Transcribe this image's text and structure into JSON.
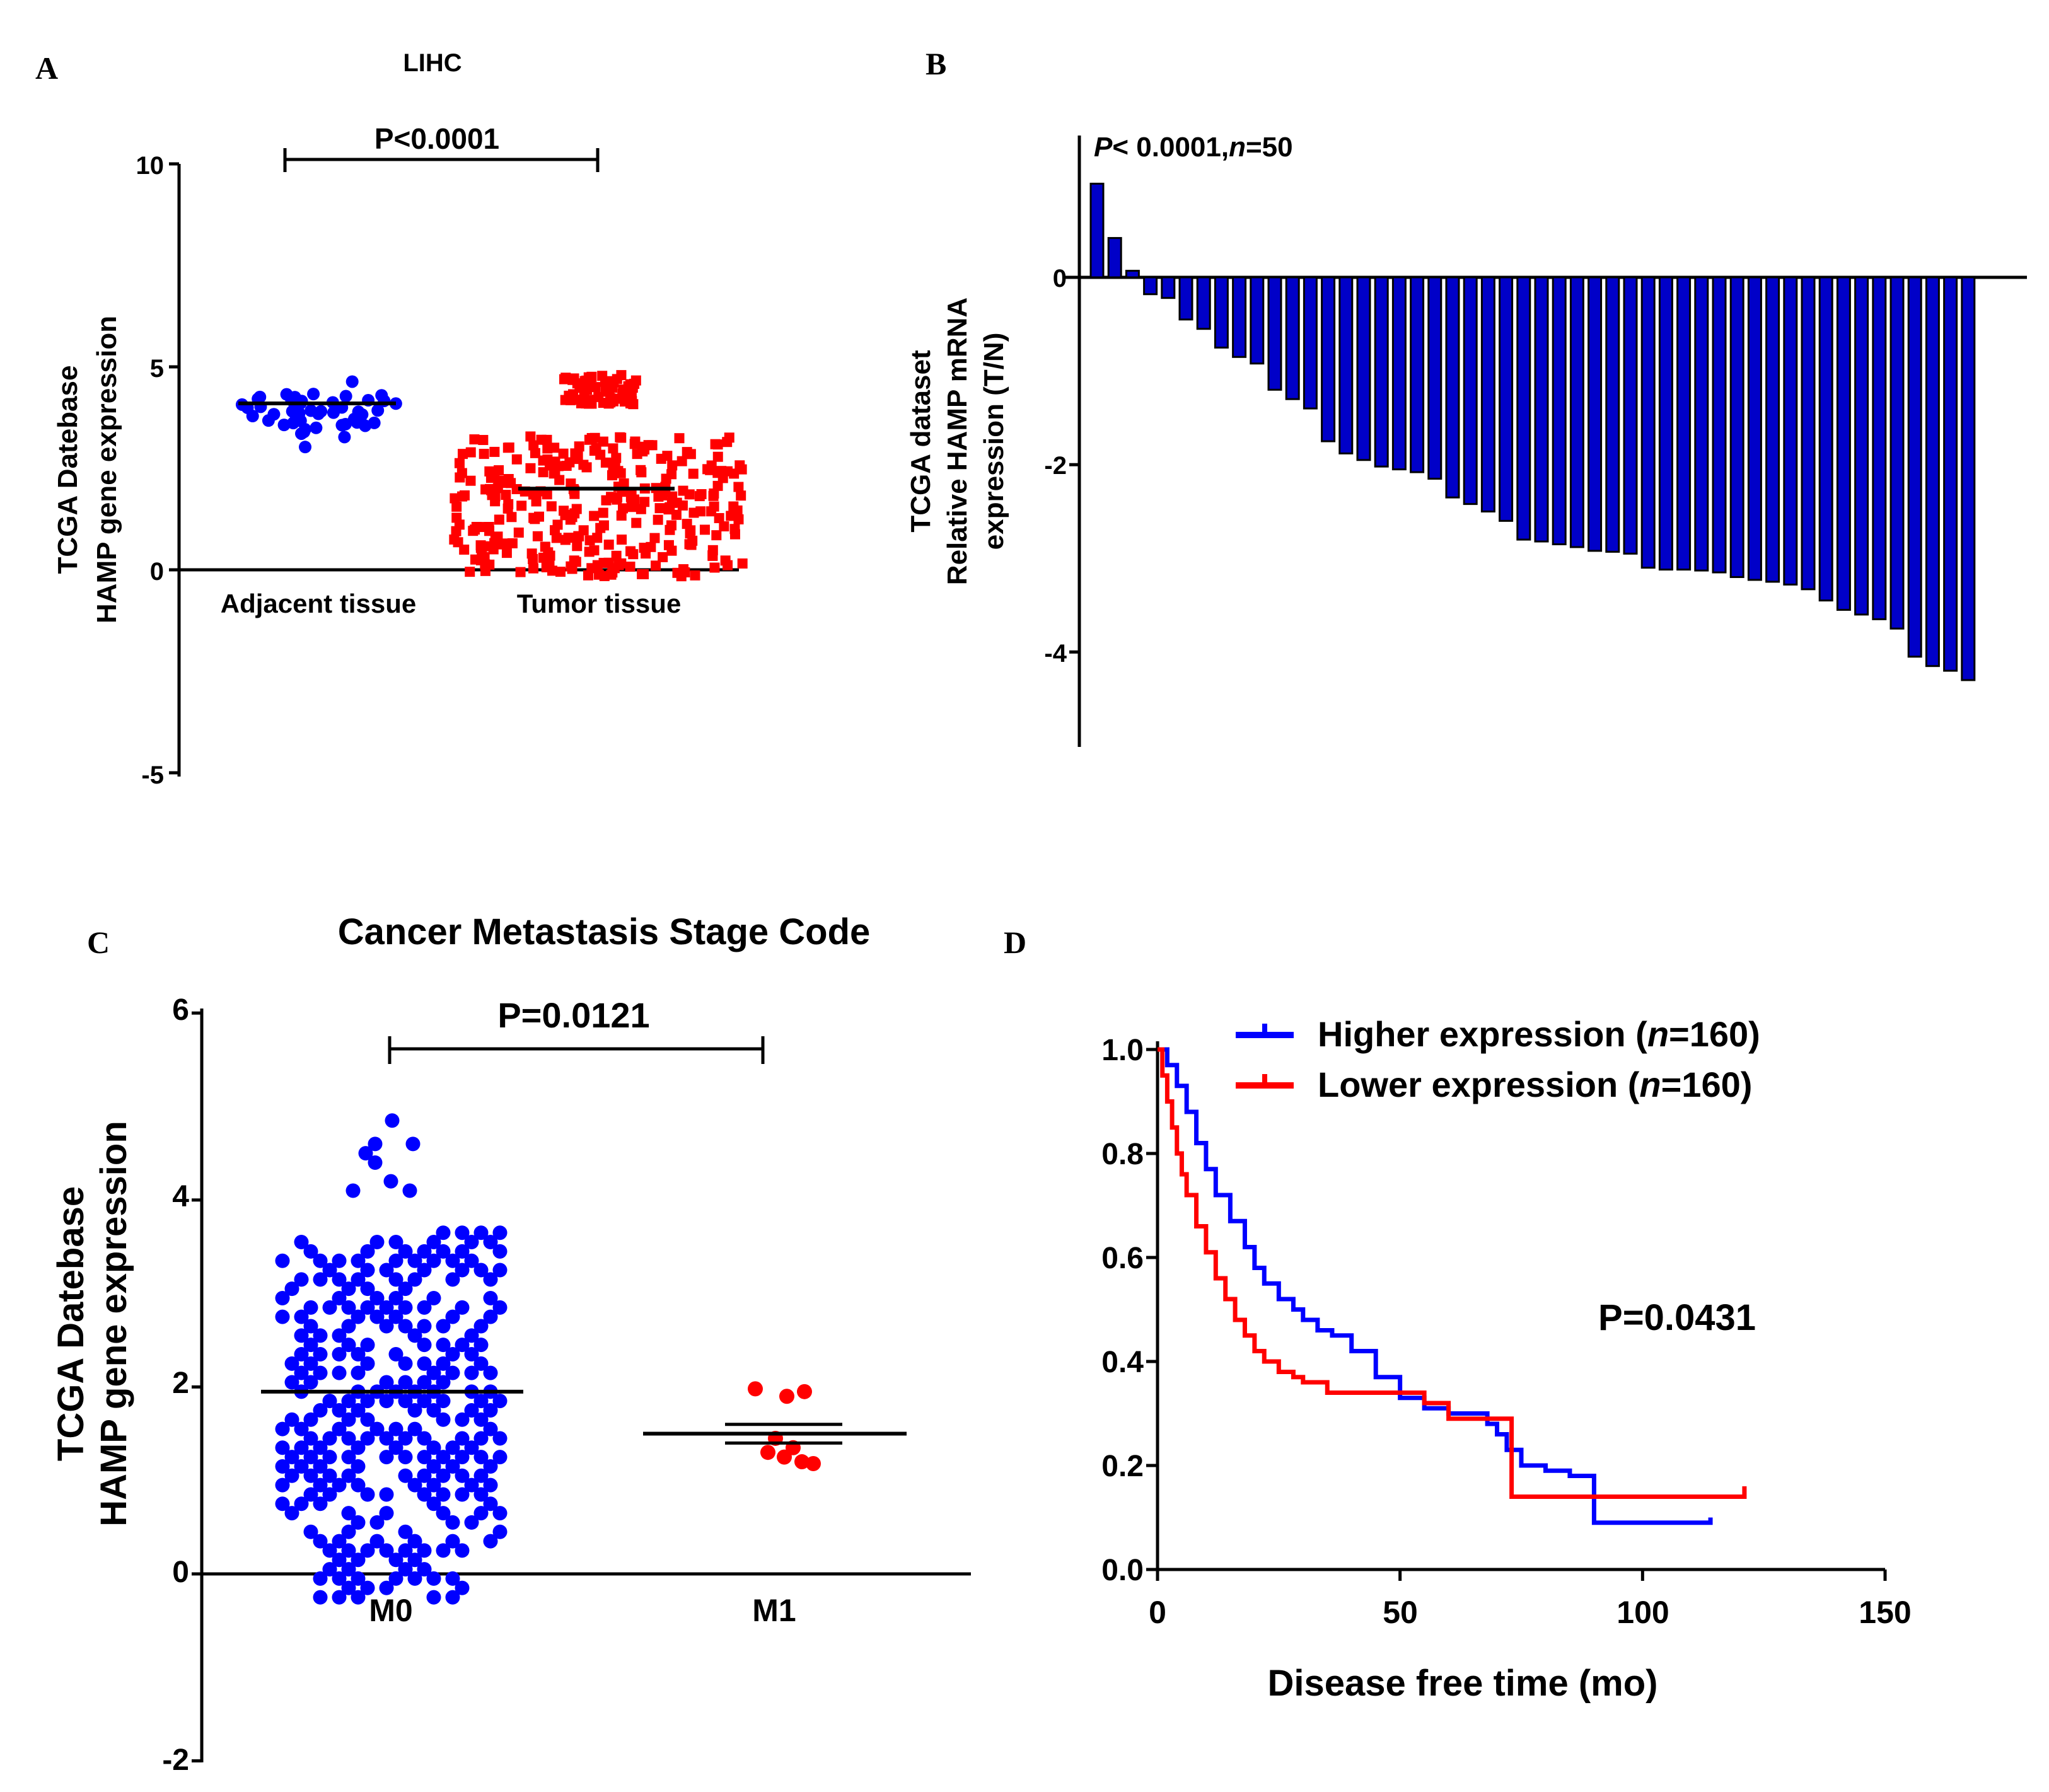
{
  "colors": {
    "blue": "#0000ff",
    "red": "#ff0000",
    "axis": "#000000",
    "bar_fill": "#0000c8"
  },
  "chart_data": [
    {
      "panel": "A",
      "type": "scatter",
      "title": "LIHC",
      "ylabel_lines": [
        "TCGA Datebase",
        "HAMP gene expression"
      ],
      "ylim": [
        -5,
        10
      ],
      "yticks": [
        -5,
        0,
        5,
        10
      ],
      "categories": [
        "Adjacent tissue",
        "Tumor tissue"
      ],
      "pvalue": "P<0.0001",
      "means": [
        4.1,
        2.0
      ],
      "series": [
        {
          "name": "Adjacent tissue",
          "color": "#0000ff",
          "marker": "circle",
          "n": 50,
          "range": [
            2.9,
            4.9
          ]
        },
        {
          "name": "Tumor tissue",
          "color": "#ff0000",
          "marker": "square",
          "n": 370,
          "range": [
            -0.2,
            4.8
          ]
        }
      ]
    },
    {
      "panel": "B",
      "type": "bar",
      "pvalue_prefix": "P",
      "pvalue_rest": "< 0.0001,",
      "n_label": "n",
      "n_value": "=50",
      "ylabel_lines": [
        "TCGA dataset",
        "Relative HAMP mRNA",
        "expression (T/N)"
      ],
      "ylim": [
        -5,
        1.4
      ],
      "yticks": [
        0,
        -2,
        -4
      ],
      "values": [
        1.0,
        0.42,
        0.07,
        -0.18,
        -0.22,
        -0.45,
        -0.55,
        -0.75,
        -0.85,
        -0.92,
        -1.2,
        -1.3,
        -1.4,
        -1.75,
        -1.88,
        -1.95,
        -2.02,
        -2.05,
        -2.08,
        -2.15,
        -2.35,
        -2.42,
        -2.5,
        -2.6,
        -2.8,
        -2.82,
        -2.85,
        -2.88,
        -2.92,
        -2.93,
        -2.95,
        -3.1,
        -3.12,
        -3.12,
        -3.13,
        -3.15,
        -3.2,
        -3.23,
        -3.25,
        -3.28,
        -3.33,
        -3.45,
        -3.55,
        -3.6,
        -3.65,
        -3.75,
        -4.05,
        -4.15,
        -4.2,
        -4.3
      ]
    },
    {
      "panel": "C",
      "type": "scatter",
      "title": "Cancer Metastasis Stage Code",
      "ylabel_lines": [
        "TCGA Datebase",
        "HAMP gene expression"
      ],
      "ylim": [
        -2,
        6
      ],
      "yticks": [
        -2,
        0,
        2,
        4,
        6
      ],
      "categories": [
        "M0",
        "M1"
      ],
      "pvalue": "P=0.0121",
      "means": [
        1.95,
        1.5
      ],
      "series": [
        {
          "name": "M0",
          "color": "#0000ff",
          "marker": "circle",
          "n": 290,
          "range": [
            -0.3,
            4.85
          ]
        },
        {
          "name": "M1",
          "color": "#ff0000",
          "marker": "circle",
          "values": [
            1.98,
            1.9,
            1.95,
            1.45,
            1.35,
            1.3,
            1.25,
            1.2,
            1.18
          ]
        }
      ]
    },
    {
      "panel": "D",
      "type": "line",
      "xlabel": "Disease free time (mo)",
      "xlim": [
        0,
        150
      ],
      "xticks": [
        0,
        50,
        100,
        150
      ],
      "ylim": [
        0,
        1.0
      ],
      "yticks": [
        "0.0",
        "0.2",
        "0.4",
        "0.6",
        "0.8",
        "1.0"
      ],
      "pvalue": "P=0.0431",
      "series": [
        {
          "name_prefix": "Higher expression (",
          "n_label": "n",
          "name_suffix": "=160)",
          "color": "#0000ff",
          "x": [
            0,
            2,
            4,
            6,
            8,
            10,
            12,
            15,
            18,
            20,
            22,
            25,
            28,
            30,
            33,
            36,
            40,
            45,
            50,
            55,
            60,
            66,
            68,
            70,
            72,
            75,
            80,
            85,
            90,
            95,
            100,
            105,
            110,
            114
          ],
          "y": [
            1.0,
            0.97,
            0.93,
            0.88,
            0.82,
            0.77,
            0.72,
            0.67,
            0.62,
            0.58,
            0.55,
            0.52,
            0.5,
            0.48,
            0.46,
            0.45,
            0.42,
            0.37,
            0.33,
            0.31,
            0.3,
            0.3,
            0.28,
            0.26,
            0.23,
            0.2,
            0.19,
            0.18,
            0.09,
            0.09,
            0.09,
            0.09,
            0.09,
            0.1
          ]
        },
        {
          "name_prefix": "Lower expression (",
          "n_label": "n",
          "name_suffix": "=160)",
          "color": "#ff0000",
          "x": [
            0,
            1,
            2,
            3,
            4,
            5,
            6,
            8,
            10,
            12,
            14,
            16,
            18,
            20,
            22,
            25,
            28,
            30,
            35,
            40,
            50,
            55,
            60,
            65,
            70,
            72,
            73,
            74,
            80,
            90,
            100,
            110,
            120,
            121
          ],
          "y": [
            1.0,
            0.95,
            0.9,
            0.85,
            0.8,
            0.76,
            0.72,
            0.66,
            0.61,
            0.56,
            0.52,
            0.48,
            0.45,
            0.42,
            0.4,
            0.38,
            0.37,
            0.36,
            0.34,
            0.34,
            0.34,
            0.32,
            0.29,
            0.29,
            0.29,
            0.29,
            0.14,
            0.14,
            0.14,
            0.14,
            0.14,
            0.14,
            0.14,
            0.16
          ]
        }
      ]
    }
  ]
}
